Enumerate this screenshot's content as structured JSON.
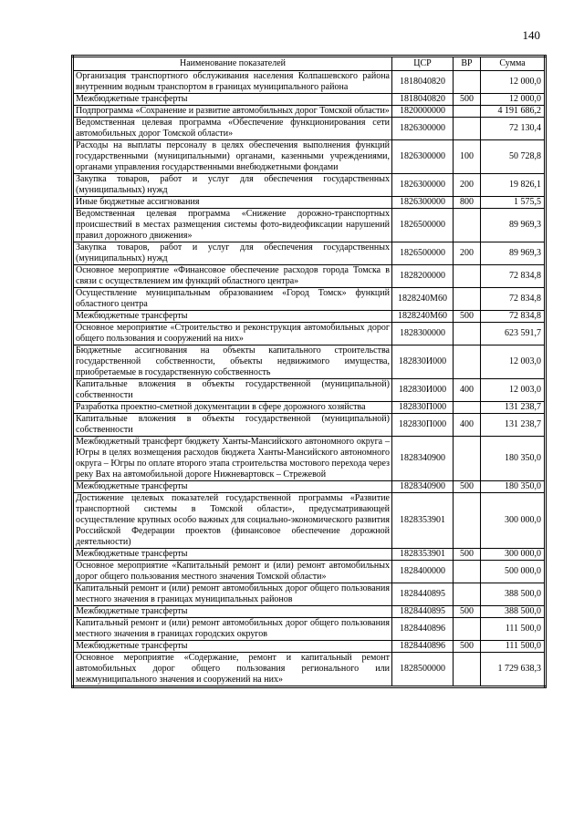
{
  "page": {
    "number": "140"
  },
  "table": {
    "headers": {
      "name": "Наименование показателей",
      "csr": "ЦСР",
      "vr": "ВР",
      "sum": "Сумма"
    },
    "rows": [
      {
        "name": "Организация транспортного обслуживания населения Колпашевского района внутренним водным транспортом в границах муниципального района",
        "csr": "1818040820",
        "vr": "",
        "sum": "12 000,0"
      },
      {
        "name": "Межбюджетные трансферты",
        "csr": "1818040820",
        "vr": "500",
        "sum": "12 000,0"
      },
      {
        "name": "Подпрограмма «Сохранение и развитие автомобильных дорог Томской области»",
        "csr": "1820000000",
        "vr": "",
        "sum": "4 191 686,2"
      },
      {
        "name": "Ведомственная целевая программа «Обеспечение функционирования сети автомобильных дорог Томской области»",
        "csr": "1826300000",
        "vr": "",
        "sum": "72 130,4"
      },
      {
        "name": "Расходы на выплаты персоналу в целях обеспечения выполнения функций государственными (муниципальными) органами, казенными учреждениями, органами управления государственными внебюджетными фондами",
        "csr": "1826300000",
        "vr": "100",
        "sum": "50 728,8"
      },
      {
        "name": "Закупка товаров, работ и услуг для обеспечения государственных (муниципальных) нужд",
        "csr": "1826300000",
        "vr": "200",
        "sum": "19 826,1"
      },
      {
        "name": "Иные бюджетные ассигнования",
        "csr": "1826300000",
        "vr": "800",
        "sum": "1 575,5"
      },
      {
        "name": "Ведомственная целевая программа «Снижение дорожно-транспортных происшествий в местах размещения системы фото-видеофиксации нарушений правил дорожного движения»",
        "csr": "1826500000",
        "vr": "",
        "sum": "89 969,3"
      },
      {
        "name": "Закупка товаров, работ и услуг для обеспечения государственных (муниципальных) нужд",
        "csr": "1826500000",
        "vr": "200",
        "sum": "89 969,3"
      },
      {
        "name": "Основное мероприятие «Финансовое обеспечение расходов города Томска в связи с осуществлением им функций областного центра»",
        "csr": "1828200000",
        "vr": "",
        "sum": "72 834,8"
      },
      {
        "name": "Осуществление муниципальным образованием «Город Томск» функций областного центра",
        "csr": "1828240М60",
        "vr": "",
        "sum": "72 834,8"
      },
      {
        "name": "Межбюджетные трансферты",
        "csr": "1828240М60",
        "vr": "500",
        "sum": "72 834,8"
      },
      {
        "name": "Основное мероприятие «Строительство и реконструкция автомобильных дорог общего пользования и сооружений на них»",
        "csr": "1828300000",
        "vr": "",
        "sum": "623 591,7"
      },
      {
        "name": "Бюджетные ассигнования на объекты капитального строительства государственной собственности, объекты недвижимого имущества, приобретаемые в государственную собственность",
        "csr": "182830И000",
        "vr": "",
        "sum": "12 003,0"
      },
      {
        "name": "Капитальные вложения в объекты государственной (муниципальной) собственности",
        "csr": "182830И000",
        "vr": "400",
        "sum": "12 003,0"
      },
      {
        "name": "Разработка проектно-сметной документации в сфере дорожного хозяйства",
        "csr": "182830П000",
        "vr": "",
        "sum": "131 238,7"
      },
      {
        "name": "Капитальные вложения в объекты государственной (муниципальной) собственности",
        "csr": "182830П000",
        "vr": "400",
        "sum": "131 238,7"
      },
      {
        "name": "Межбюджетный трансферт бюджету Ханты-Мансийского автономного округа – Югры в целях возмещения расходов бюджета Ханты-Мансийского автономного округа – Югры по оплате второго этапа строительства мостового перехода через реку Вах на автомобильной дороге Нижневартовск – Стрежевой",
        "csr": "1828340900",
        "vr": "",
        "sum": "180 350,0"
      },
      {
        "name": "Межбюджетные трансферты",
        "csr": "1828340900",
        "vr": "500",
        "sum": "180 350,0"
      },
      {
        "name": "Достижение целевых показателей государственной программы «Развитие транспортной системы в Томской области», предусматривающей осуществление крупных особо важных для социально-экономического развития Российской Федерации проектов (финансовое обеспечение дорожной деятельности)",
        "csr": "1828353901",
        "vr": "",
        "sum": "300 000,0"
      },
      {
        "name": "Межбюджетные трансферты",
        "csr": "1828353901",
        "vr": "500",
        "sum": "300 000,0"
      },
      {
        "name": "Основное мероприятие «Капитальный ремонт и (или) ремонт автомобильных дорог общего пользования местного значения Томской области»",
        "csr": "1828400000",
        "vr": "",
        "sum": "500 000,0"
      },
      {
        "name": "Капитальный ремонт и (или) ремонт автомобильных дорог общего пользования местного значения в границах муниципальных районов",
        "csr": "1828440895",
        "vr": "",
        "sum": "388 500,0"
      },
      {
        "name": "Межбюджетные трансферты",
        "csr": "1828440895",
        "vr": "500",
        "sum": "388 500,0"
      },
      {
        "name": "Капитальный ремонт и (или) ремонт автомобильных дорог общего пользования местного значения в границах городских округов",
        "csr": "1828440896",
        "vr": "",
        "sum": "111 500,0"
      },
      {
        "name": "Межбюджетные трансферты",
        "csr": "1828440896",
        "vr": "500",
        "sum": "111 500,0"
      },
      {
        "name": "Основное мероприятие «Содержание, ремонт и капитальный ремонт автомобильных дорог общего пользования регионального или межмуниципального значения и сооружений на них»",
        "csr": "1828500000",
        "vr": "",
        "sum": "1 729 638,3"
      }
    ]
  }
}
